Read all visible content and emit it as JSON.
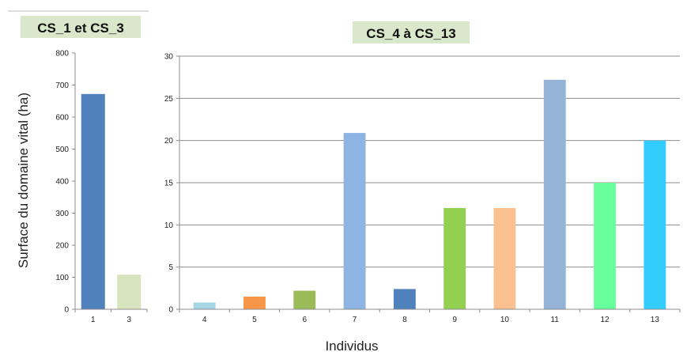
{
  "chart_data": [
    {
      "type": "bar",
      "title": "CS_1 et CS_3",
      "ylabel": "Surface du domaine vital (ha)",
      "xlabel": "",
      "categories": [
        "1",
        "3"
      ],
      "values": [
        672,
        108
      ],
      "colors": [
        "#4F81BD",
        "#D7E4BD"
      ],
      "ylim": [
        0,
        800
      ],
      "yticks": [
        0,
        100,
        200,
        300,
        400,
        500,
        600,
        700,
        800
      ],
      "grid": false,
      "title_background": "#D9E7CB"
    },
    {
      "type": "bar",
      "title": "CS_4 à CS_13",
      "ylabel": "",
      "xlabel": "Individus",
      "categories": [
        "4",
        "5",
        "6",
        "7",
        "8",
        "9",
        "10",
        "11",
        "12",
        "13"
      ],
      "values": [
        0.8,
        1.5,
        2.2,
        20.9,
        2.4,
        12.0,
        12.0,
        27.2,
        15.0,
        20.0
      ],
      "colors": [
        "#A6D5E3",
        "#F79646",
        "#9BBB59",
        "#8DB4E2",
        "#4F81BD",
        "#92D050",
        "#FAC090",
        "#95B3D7",
        "#66FF99",
        "#33CCFF"
      ],
      "ylim": [
        0,
        30
      ],
      "yticks": [
        0,
        5,
        10,
        15,
        20,
        25,
        30
      ],
      "grid": true,
      "title_background": "#D9E7CB"
    }
  ]
}
